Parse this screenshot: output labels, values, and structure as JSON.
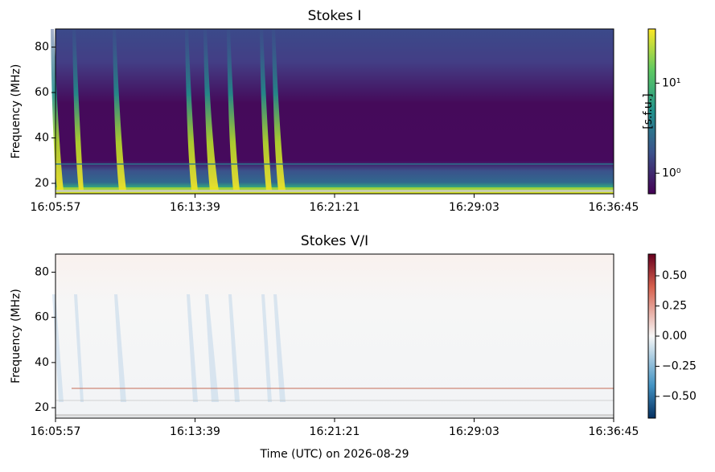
{
  "chart_data": [
    {
      "type": "heatmap",
      "title": "Stokes I",
      "ylabel": "Frequency (MHz)",
      "colormap": "viridis",
      "xlim": [
        0,
        1848
      ],
      "xticks": [
        {
          "value": 0,
          "label": "16:05:57"
        },
        {
          "value": 462,
          "label": "16:13:39"
        },
        {
          "value": 924,
          "label": "16:21:21"
        },
        {
          "value": 1386,
          "label": "16:29:03"
        },
        {
          "value": 1848,
          "label": "16:36:45"
        }
      ],
      "ylim": [
        15.4,
        88
      ],
      "yticks": [
        20,
        40,
        60,
        80
      ],
      "colorbar_label": "[s.f.u.]",
      "colorbar_scale": "log",
      "clim": [
        0.59,
        40
      ],
      "cticks": [
        {
          "value": 1,
          "label": "10⁰"
        },
        {
          "value": 10,
          "label": "10¹"
        }
      ]
    },
    {
      "type": "heatmap",
      "title": "Stokes V/I",
      "ylabel": "Frequency (MHz)",
      "xlabel": "Time (UTC) on 2026-08-29",
      "colormap": "RdBu_r",
      "xlim": [
        0,
        1848
      ],
      "xticks": [
        {
          "value": 0,
          "label": "16:05:57"
        },
        {
          "value": 462,
          "label": "16:13:39"
        },
        {
          "value": 924,
          "label": "16:21:21"
        },
        {
          "value": 1386,
          "label": "16:29:03"
        },
        {
          "value": 1848,
          "label": "16:36:45"
        }
      ],
      "ylim": [
        15.4,
        88
      ],
      "yticks": [
        20,
        40,
        60,
        80
      ],
      "colorbar_scale": "linear",
      "clim": [
        -0.68,
        0.68
      ],
      "cticks": [
        {
          "value": 0.5,
          "label": "0.50"
        },
        {
          "value": 0.25,
          "label": "0.25"
        },
        {
          "value": 0,
          "label": "0.00"
        },
        {
          "value": -0.25,
          "label": "−0.25"
        },
        {
          "value": -0.5,
          "label": "−0.50"
        }
      ]
    }
  ]
}
